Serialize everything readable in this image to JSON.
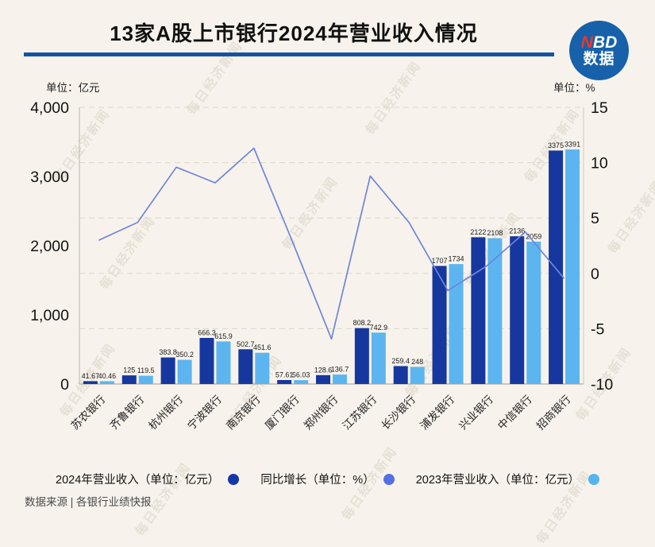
{
  "header": {
    "title": "13家A股上市银行2024年营业收入情况",
    "logo": {
      "red": "N",
      "rest": "BD",
      "sub": "数据"
    }
  },
  "axes": {
    "left_unit": "单位：亿元",
    "right_unit": "单位：%"
  },
  "chart_data": {
    "type": "bar+line",
    "title": "13家A股上市银行2024年营业收入情况",
    "categories": [
      "苏农银行",
      "齐鲁银行",
      "杭州银行",
      "宁波银行",
      "南京银行",
      "厦门银行",
      "郑州银行",
      "江苏银行",
      "长沙银行",
      "浦发银行",
      "兴业银行",
      "中信银行",
      "招商银行"
    ],
    "series": [
      {
        "name": "2024年营业收入",
        "unit": "亿元",
        "type": "bar",
        "axis": "left",
        "color": "#16379e",
        "values": [
          41.67,
          125,
          383.8,
          666.3,
          502.7,
          57.61,
          128.6,
          808.2,
          259.4,
          1707,
          2122,
          2136,
          3375
        ],
        "labels": [
          "41.67",
          "125",
          "383.8",
          "666.3",
          "502.7",
          "57.61",
          "128.6",
          "808.2",
          "259.4",
          "1707",
          "2122",
          "2136",
          "3375"
        ]
      },
      {
        "name": "2023年营业收入",
        "unit": "亿元",
        "type": "bar",
        "axis": "left",
        "color": "#5cb5ef",
        "values": [
          40.46,
          119.5,
          350.2,
          615.9,
          451.6,
          56.03,
          136.7,
          742.9,
          248,
          1734,
          2108,
          2059,
          3391
        ],
        "labels": [
          "40.46",
          "119.5",
          "350.2",
          "615.9",
          "451.6",
          "56.03",
          "136.7",
          "742.9",
          "248",
          "1734",
          "2108",
          "2059",
          "3391"
        ]
      },
      {
        "name": "同比增长",
        "unit": "%",
        "type": "line",
        "axis": "right",
        "color": "#6f85da",
        "values": [
          2.99,
          4.6,
          9.59,
          8.18,
          11.31,
          2.82,
          -5.93,
          8.79,
          4.6,
          -1.56,
          0.66,
          3.74,
          -0.47
        ]
      }
    ],
    "left_axis": {
      "min": 0,
      "max": 4000,
      "tick_labels": [
        "4,000",
        "3,000",
        "2,000",
        "1,000",
        "0"
      ],
      "tick_values": [
        4000,
        3000,
        2000,
        1000,
        0
      ]
    },
    "right_axis": {
      "min": -10,
      "max": 15,
      "tick_labels": [
        "15",
        "10",
        "5",
        "0",
        "-5",
        "-10"
      ],
      "tick_values": [
        15,
        10,
        5,
        0,
        -5,
        -10
      ]
    },
    "grid": "horizontal dashed",
    "legend_position": "bottom"
  },
  "legend": {
    "items": [
      {
        "label": "2024年营业收入（单位：亿元）",
        "color": "#1537a8"
      },
      {
        "label": "同比增长（单位：%）",
        "color": "#5570e2"
      },
      {
        "label": "2023年营业收入（单位：亿元）",
        "color": "#54b4f0"
      }
    ]
  },
  "footer": {
    "source": "数据来源 | 各银行业绩快报"
  },
  "watermark": {
    "text": "每日经济新闻"
  }
}
